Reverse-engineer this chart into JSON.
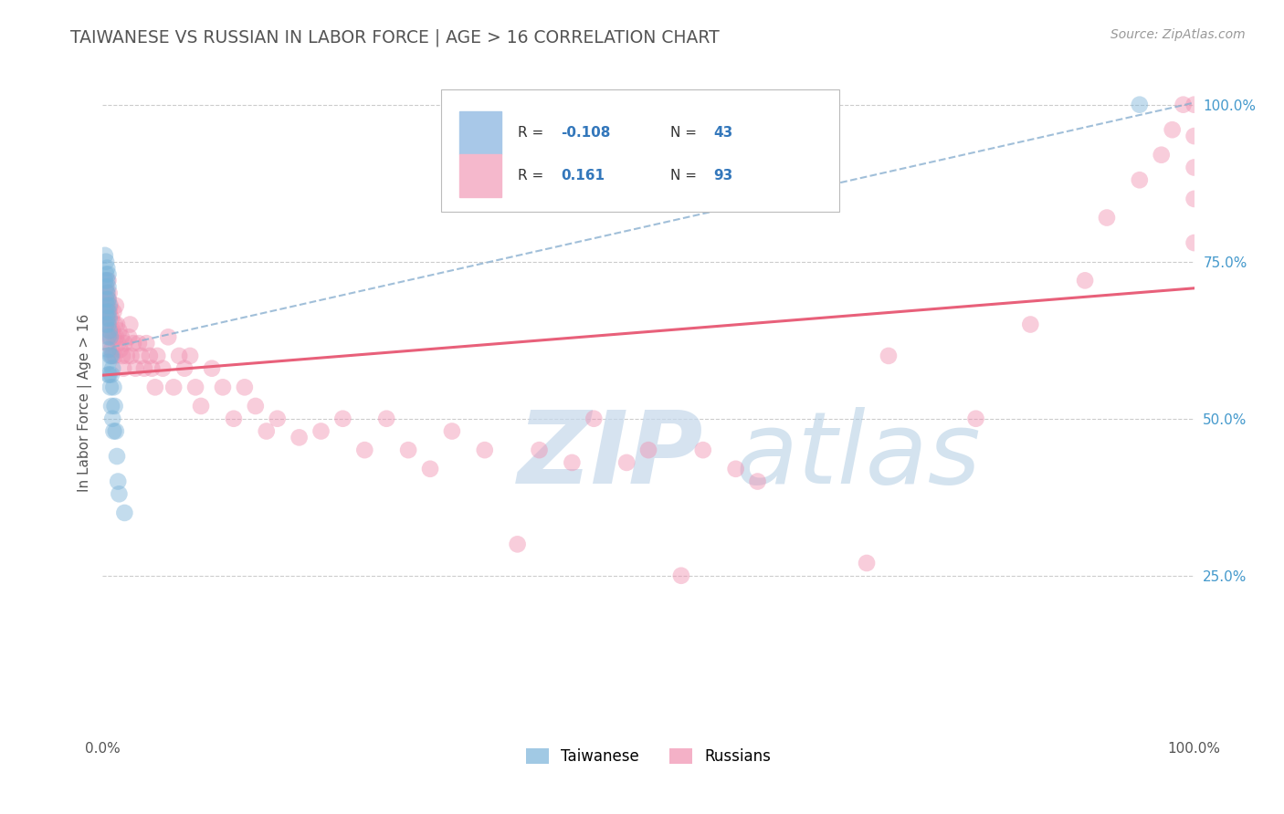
{
  "title": "TAIWANESE VS RUSSIAN IN LABOR FORCE | AGE > 16 CORRELATION CHART",
  "source_text": "Source: ZipAtlas.com",
  "ylabel": "In Labor Force | Age > 16",
  "xlim": [
    0.0,
    1.0
  ],
  "ylim": [
    0.0,
    1.05
  ],
  "right_yticks": [
    0.25,
    0.5,
    0.75,
    1.0
  ],
  "right_yticklabels": [
    "25.0%",
    "50.0%",
    "75.0%",
    "100.0%"
  ],
  "watermark_zip": "ZIP",
  "watermark_atlas": "atlas",
  "taiwanese_color": "#7ab3d9",
  "russian_color": "#f090b0",
  "taiwanese_line_color": "#8ab0d0",
  "russian_line_color": "#e8607a",
  "grid_color": "#cccccc",
  "background_color": "#ffffff",
  "title_color": "#555555",
  "right_tick_color": "#4499cc",
  "tw_R": -0.108,
  "tw_N": 43,
  "ru_R": 0.161,
  "ru_N": 93,
  "taiwanese_x": [
    0.002,
    0.002,
    0.003,
    0.003,
    0.003,
    0.003,
    0.003,
    0.003,
    0.004,
    0.004,
    0.004,
    0.004,
    0.004,
    0.005,
    0.005,
    0.005,
    0.005,
    0.005,
    0.005,
    0.005,
    0.005,
    0.005,
    0.006,
    0.006,
    0.006,
    0.006,
    0.007,
    0.007,
    0.007,
    0.008,
    0.008,
    0.008,
    0.009,
    0.009,
    0.01,
    0.01,
    0.011,
    0.012,
    0.013,
    0.014,
    0.015,
    0.02,
    0.95
  ],
  "taiwanese_y": [
    0.76,
    0.72,
    0.75,
    0.73,
    0.71,
    0.69,
    0.67,
    0.65,
    0.74,
    0.72,
    0.7,
    0.68,
    0.66,
    0.73,
    0.71,
    0.69,
    0.67,
    0.65,
    0.63,
    0.61,
    0.59,
    0.57,
    0.68,
    0.66,
    0.64,
    0.57,
    0.63,
    0.6,
    0.55,
    0.6,
    0.57,
    0.52,
    0.58,
    0.5,
    0.55,
    0.48,
    0.52,
    0.48,
    0.44,
    0.4,
    0.38,
    0.35,
    1.0
  ],
  "russian_x": [
    0.003,
    0.003,
    0.004,
    0.004,
    0.005,
    0.005,
    0.005,
    0.006,
    0.006,
    0.006,
    0.007,
    0.007,
    0.008,
    0.008,
    0.009,
    0.009,
    0.01,
    0.01,
    0.011,
    0.011,
    0.012,
    0.012,
    0.013,
    0.014,
    0.015,
    0.016,
    0.017,
    0.018,
    0.019,
    0.02,
    0.022,
    0.024,
    0.025,
    0.026,
    0.028,
    0.03,
    0.033,
    0.035,
    0.038,
    0.04,
    0.043,
    0.045,
    0.048,
    0.05,
    0.055,
    0.06,
    0.065,
    0.07,
    0.075,
    0.08,
    0.085,
    0.09,
    0.1,
    0.11,
    0.12,
    0.13,
    0.14,
    0.15,
    0.16,
    0.18,
    0.2,
    0.22,
    0.24,
    0.26,
    0.28,
    0.3,
    0.32,
    0.35,
    0.38,
    0.4,
    0.43,
    0.45,
    0.48,
    0.5,
    0.53,
    0.55,
    0.58,
    0.6,
    0.7,
    0.72,
    0.8,
    0.85,
    0.9,
    0.92,
    0.95,
    0.97,
    0.98,
    0.99,
    1.0,
    1.0,
    1.0,
    1.0,
    1.0
  ],
  "russian_y": [
    0.68,
    0.65,
    0.7,
    0.62,
    0.72,
    0.69,
    0.66,
    0.7,
    0.67,
    0.63,
    0.68,
    0.64,
    0.66,
    0.61,
    0.64,
    0.6,
    0.67,
    0.63,
    0.65,
    0.6,
    0.68,
    0.63,
    0.65,
    0.62,
    0.64,
    0.61,
    0.63,
    0.6,
    0.58,
    0.62,
    0.6,
    0.63,
    0.65,
    0.6,
    0.62,
    0.58,
    0.62,
    0.6,
    0.58,
    0.62,
    0.6,
    0.58,
    0.55,
    0.6,
    0.58,
    0.63,
    0.55,
    0.6,
    0.58,
    0.6,
    0.55,
    0.52,
    0.58,
    0.55,
    0.5,
    0.55,
    0.52,
    0.48,
    0.5,
    0.47,
    0.48,
    0.5,
    0.45,
    0.5,
    0.45,
    0.42,
    0.48,
    0.45,
    0.3,
    0.45,
    0.43,
    0.5,
    0.43,
    0.45,
    0.25,
    0.45,
    0.42,
    0.4,
    0.27,
    0.6,
    0.5,
    0.65,
    0.72,
    0.82,
    0.88,
    0.92,
    0.96,
    1.0,
    1.0,
    0.85,
    0.9,
    0.78,
    0.95
  ]
}
